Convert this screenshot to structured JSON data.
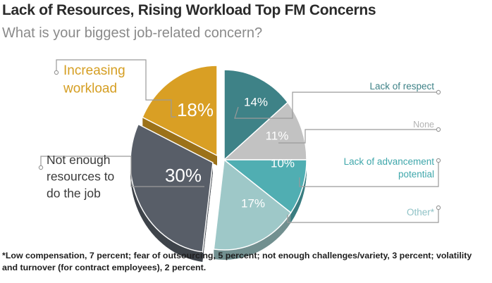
{
  "header": {
    "title": "Lack of Resources, Rising Workload Top FM Concerns",
    "subtitle": "What is your biggest job-related concern?"
  },
  "chart_data": {
    "type": "pie",
    "title": "Lack of Resources, Rising Workload Top FM Concerns",
    "subtitle": "What is your biggest job-related concern?",
    "slices": [
      {
        "label": "Lack of respect",
        "value": 14,
        "value_label": "14%",
        "color": "#3e8287"
      },
      {
        "label": "None",
        "value": 11,
        "value_label": "11%",
        "color": "#c2c2c2"
      },
      {
        "label": "Lack of advancement potential",
        "value": 10,
        "value_label": "10%",
        "color": "#50aeb2"
      },
      {
        "label": "Other*",
        "value": 17,
        "value_label": "17%",
        "color": "#9ec8c8"
      },
      {
        "label": "Not enough resources to do the job",
        "value": 30,
        "value_label": "30%",
        "color": "#585e68"
      },
      {
        "label": "Increasing workload",
        "value": 18,
        "value_label": "18%",
        "color": "#d99f24"
      }
    ],
    "legend": "callout labels around the pie",
    "exploded": [
      "Not enough resources to do the job",
      "Increasing workload"
    ]
  },
  "footnote": "*Low compensation, 7 percent; fear of outsourcing, 5 percent; not enough challenges/variety, 3 percent; volatility and turnover (for contract employees), 2 percent."
}
